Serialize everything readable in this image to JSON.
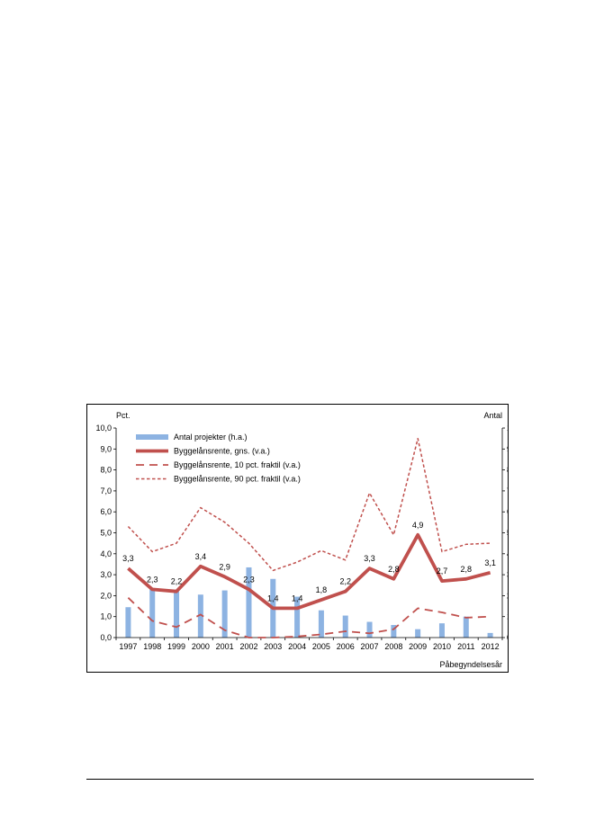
{
  "chart_data": {
    "type": "bar",
    "left_axis_label": "Pct.",
    "right_axis_label": "Antal",
    "xlabel": "Påbegyndelsesår",
    "categories": [
      "1997",
      "1998",
      "1999",
      "2000",
      "2001",
      "2002",
      "2003",
      "2004",
      "2005",
      "2006",
      "2007",
      "2008",
      "2009",
      "2010",
      "2011",
      "2012"
    ],
    "left_ylim": [
      0,
      10
    ],
    "right_ylim": [
      0,
      1000
    ],
    "left_ticks": [
      "0,0",
      "1,0",
      "2,0",
      "3,0",
      "4,0",
      "5,0",
      "6,0",
      "7,0",
      "8,0",
      "9,0",
      "10,0"
    ],
    "right_ticks": [
      "0",
      "100",
      "200",
      "300",
      "400",
      "500",
      "600",
      "700",
      "800",
      "900",
      "1000"
    ],
    "grid": false,
    "legend_position": "top-left",
    "bars": {
      "name": "Antal projekter (h.a.)",
      "axis": "right",
      "color": "#8db3e2",
      "values": [
        145,
        235,
        220,
        205,
        225,
        335,
        280,
        195,
        130,
        105,
        75,
        60,
        40,
        68,
        100,
        22
      ]
    },
    "series": [
      {
        "name": "Byggelånsrente, gns. (v.a.)",
        "axis": "left",
        "style": "thick-solid",
        "color": "#c0504d",
        "values": [
          3.3,
          2.3,
          2.2,
          3.4,
          2.9,
          2.3,
          1.4,
          1.4,
          1.8,
          2.2,
          3.3,
          2.8,
          4.9,
          2.7,
          2.8,
          3.1
        ],
        "labels": [
          "3,3",
          "2,3",
          "2,2",
          "3,4",
          "2,9",
          "2,3",
          "1,4",
          "1,4",
          "1,8",
          "2,2",
          "3,3",
          "2,8",
          "4,9",
          "2,7",
          "2,8",
          "3,1"
        ]
      },
      {
        "name": "Byggelånsrente, 10 pct. fraktil (v.a.)",
        "axis": "left",
        "style": "long-dash",
        "color": "#c0504d",
        "values": [
          1.9,
          0.8,
          0.5,
          1.1,
          0.35,
          0.0,
          0.0,
          0.05,
          0.15,
          0.3,
          0.2,
          0.4,
          1.4,
          1.2,
          0.95,
          1.0
        ]
      },
      {
        "name": "Byggelånsrente, 90 pct. fraktil (v.a.)",
        "axis": "left",
        "style": "short-dash",
        "color": "#c0504d",
        "values": [
          5.3,
          4.1,
          4.5,
          6.2,
          5.5,
          4.5,
          3.2,
          3.6,
          4.15,
          3.7,
          6.9,
          4.9,
          9.5,
          4.1,
          4.45,
          4.5
        ]
      }
    ]
  }
}
